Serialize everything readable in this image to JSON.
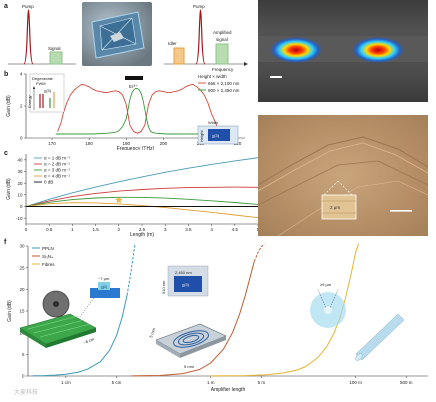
{
  "panel_labels": {
    "a": "a",
    "b": "b",
    "c": "c",
    "d": "d",
    "e": "e",
    "f": "f"
  },
  "panel_a": {
    "left_pump": "Pump",
    "left_signal": "Signal",
    "right_pump": "Pump",
    "idler": "Idler",
    "amplified_signal": "Amplified signal",
    "frequency": "Frequency",
    "colors": {
      "pump": "#9b1b1b",
      "signal": "#8cc38c",
      "idler": "#e8a040",
      "green_fill": "#b8dcb0"
    }
  },
  "panel_b": {
    "chart_data": {
      "type": "line",
      "xlabel": "Frequency (THz)",
      "ylabel": "Gain (dB)",
      "xlim": [
        163,
        222
      ],
      "ylim": [
        0,
        4
      ],
      "x_ticks": [
        170,
        180,
        190,
        200,
        210,
        220
      ],
      "y_ticks": [
        0,
        2,
        4
      ],
      "legend_title": "Height × width",
      "series": [
        {
          "name": "666 × 2,100 nm",
          "color": "#d04a3a",
          "x": [
            171.5,
            172.5,
            173,
            174,
            175,
            176,
            177,
            178,
            179,
            180,
            181,
            182,
            183,
            184,
            185,
            186,
            187,
            188,
            189,
            190,
            191,
            192,
            193,
            194,
            195,
            196,
            197,
            198,
            199,
            200,
            201,
            202,
            203,
            204,
            205,
            206,
            207,
            208,
            209,
            210,
            211,
            212,
            213,
            214,
            215
          ],
          "y": [
            0.4,
            1.0,
            1.5,
            2.2,
            2.7,
            3.0,
            3.2,
            3.35,
            3.3,
            3.2,
            3.05,
            2.95,
            2.9,
            2.85,
            2.85,
            2.9,
            2.95,
            2.9,
            2.7,
            2.1,
            0.8,
            0.4,
            0.3,
            0.4,
            0.8,
            2.1,
            2.7,
            2.9,
            2.95,
            2.9,
            2.85,
            2.85,
            2.9,
            2.95,
            3.05,
            3.2,
            3.3,
            3.35,
            3.2,
            3.0,
            2.7,
            2.2,
            1.5,
            1.0,
            0.4
          ]
        },
        {
          "name": "900 × 2,450 nm",
          "color": "#3a9a3a",
          "x": [
            171,
            181,
            185,
            187,
            188,
            189,
            190,
            190.5,
            191,
            191.5,
            192,
            192.5,
            193,
            193.5,
            194,
            194.5,
            195,
            195.5,
            196,
            196.5,
            197,
            198,
            199,
            201,
            205,
            215
          ],
          "y": [
            0.25,
            0.25,
            0.3,
            0.35,
            0.45,
            0.7,
            1.2,
            1.8,
            2.4,
            2.8,
            3.0,
            3.1,
            3.1,
            3.0,
            2.8,
            2.4,
            1.8,
            1.2,
            0.7,
            0.45,
            0.35,
            0.3,
            0.28,
            0.25,
            0.25,
            0.25
          ]
        }
      ]
    },
    "inset_title": "Degenerate FWM",
    "inset_chi": "χ(3)",
    "inset_energy": "Energy",
    "erbium_label": "Er³⁺",
    "waveguide_height": "Height",
    "waveguide_width": "Width",
    "waveguide_chi": "χ(3)"
  },
  "panel_c": {
    "chart_data": {
      "type": "line",
      "xlabel": "Length (m)",
      "ylabel": "Gain (dB)",
      "xlim": [
        0,
        5
      ],
      "ylim": [
        -15,
        45
      ],
      "x_ticks": [
        0,
        0.5,
        1,
        1.5,
        2,
        2.5,
        3,
        3.5,
        4,
        4.5,
        5
      ],
      "x_tick_labels": [
        "0",
        "0.5",
        "1",
        "1.5",
        "2",
        "2.5",
        "3",
        "3.5",
        "4",
        "4.5",
        "5"
      ],
      "y_ticks": [
        -10,
        0,
        10,
        20,
        30,
        40
      ],
      "series": [
        {
          "name": "α = 1 dB m⁻¹",
          "color": "#4a9ab8",
          "x": [
            0,
            0.5,
            1,
            1.5,
            2,
            2.5,
            3,
            3.5,
            4,
            4.5,
            5
          ],
          "y": [
            0,
            6.2,
            11.7,
            16.6,
            21.2,
            25.4,
            29.3,
            32.8,
            36.1,
            39.1,
            41.8
          ]
        },
        {
          "name": "α = 2 dB m⁻¹",
          "color": "#cc3b3b",
          "x": [
            0,
            0.5,
            1,
            1.5,
            2,
            2.5,
            3,
            3.5,
            4,
            4.5,
            5
          ],
          "y": [
            0,
            4.8,
            8.5,
            11.2,
            13.2,
            14.6,
            15.6,
            16.2,
            16.5,
            16.6,
            16.5
          ]
        },
        {
          "name": "α = 3 dB m⁻¹",
          "color": "#3a9a3a",
          "x": [
            0,
            0.5,
            1,
            1.5,
            2,
            2.5,
            3,
            3.5,
            4,
            4.5,
            5
          ],
          "y": [
            0,
            3.6,
            5.9,
            7.3,
            7.9,
            7.8,
            7.2,
            6.2,
            4.9,
            3.4,
            1.8
          ]
        },
        {
          "name": "α = 4 dB m⁻¹",
          "color": "#e0a030",
          "x": [
            0,
            0.5,
            1,
            1.5,
            2,
            2.5,
            3,
            3.5,
            4,
            4.5,
            5
          ],
          "y": [
            0,
            2.4,
            3.3,
            3.1,
            2.2,
            0.8,
            -0.9,
            -2.9,
            -5.0,
            -7.3,
            -9.6
          ]
        },
        {
          "name": "0 dB",
          "color": "#111111",
          "x": [
            0,
            5
          ],
          "y": [
            0,
            0
          ]
        }
      ],
      "marker": {
        "x": 2.0,
        "y": 5.5,
        "color": "#f2c030"
      }
    }
  },
  "panel_d": {
    "scale_bar_color": "#ffffff"
  },
  "panel_e": {
    "inset_label": "2 μm"
  },
  "panel_f": {
    "chart_data": {
      "type": "line",
      "xlabel": "Amplifier length",
      "ylabel": "Gain (dB)",
      "x_scale": "log",
      "xlim_m": [
        0.003,
        1000
      ],
      "ylim": [
        0,
        30
      ],
      "y_ticks": [
        0,
        5,
        10,
        15,
        20,
        25,
        30
      ],
      "x_ticks_m": [
        0.01,
        0.05,
        1,
        5,
        100,
        500
      ],
      "x_tick_labels": [
        "1 cm",
        "5 cm",
        "1 m",
        "5 m",
        "100 m",
        "500 m"
      ],
      "series": [
        {
          "name": "PPLN",
          "color": "#3b9bb8",
          "x_m": [
            0.0035,
            0.005,
            0.007,
            0.01,
            0.015,
            0.02,
            0.03,
            0.04,
            0.05,
            0.06,
            0.07
          ],
          "y": [
            0.05,
            0.1,
            0.2,
            0.4,
            0.9,
            1.6,
            3.3,
            5.9,
            9.3,
            13.6,
            18.7
          ],
          "dashed_x_m": [
            0.07,
            0.08,
            0.09
          ],
          "dashed_y": [
            18.7,
            24.5,
            31
          ]
        },
        {
          "name": "Si₃N₄",
          "color": "#c05a30",
          "x_m": [
            0.08,
            0.2,
            0.4,
            0.7,
            1,
            1.5,
            2,
            2.5,
            3,
            3.5,
            4
          ],
          "y": [
            0.02,
            0.12,
            0.5,
            1.5,
            3.0,
            6.2,
            10.0,
            14.2,
            18.6,
            22.8,
            26.5
          ],
          "dashed_x_m": [
            4,
            4.5,
            5,
            5.5
          ],
          "dashed_y": [
            26.5,
            28.5,
            29.8,
            31
          ]
        },
        {
          "name": "Fibres",
          "color": "#e5b530",
          "x_m": [
            1,
            3,
            6,
            10,
            15,
            20,
            30,
            40,
            50,
            60,
            70,
            80,
            90,
            100,
            110
          ],
          "y": [
            0.02,
            0.1,
            0.3,
            0.7,
            1.3,
            2.1,
            4.2,
            6.8,
            9.8,
            13.2,
            17.0,
            21.0,
            24.8,
            28.5,
            31
          ]
        }
      ]
    },
    "ppln_chi": "χ(2)",
    "ppln_thickness": "~7 μm",
    "ppln_length": "~6 cm",
    "sin_width": "2,450 nm",
    "sin_height": "910 nm",
    "sin_chi": "χ(3)",
    "spiral_x": "5 mm",
    "spiral_y": "5 mm",
    "fibre_core": "≥9 μm",
    "watermark": "大麦科技"
  }
}
